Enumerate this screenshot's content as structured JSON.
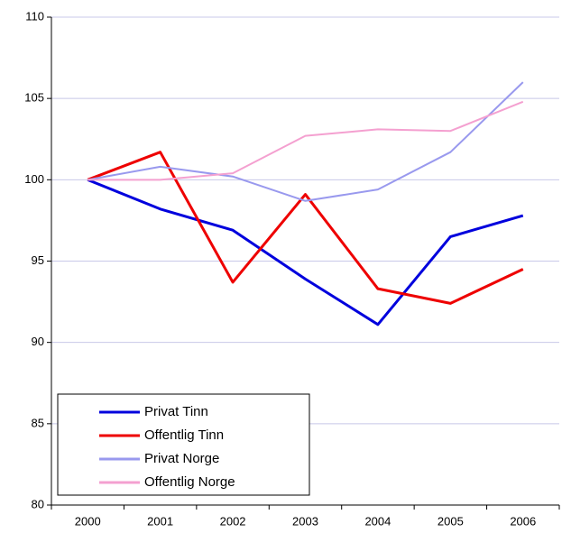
{
  "chart_data": {
    "type": "line",
    "categories": [
      "2000",
      "2001",
      "2002",
      "2003",
      "2004",
      "2005",
      "2006"
    ],
    "series": [
      {
        "name": "Privat Tinn",
        "color": "#0000dd",
        "values": [
          100,
          98.2,
          96.9,
          93.9,
          91.1,
          96.5,
          97.8
        ]
      },
      {
        "name": "Offentlig Tinn",
        "color": "#ee0000",
        "values": [
          100,
          101.7,
          93.7,
          99.1,
          93.3,
          92.4,
          94.5
        ]
      },
      {
        "name": "Privat Norge",
        "color": "#9999ee",
        "values": [
          100,
          100.8,
          100.2,
          98.7,
          99.4,
          101.7,
          106.0
        ]
      },
      {
        "name": "Offentlig Norge",
        "color": "#f4a0d0",
        "values": [
          100,
          100,
          100.4,
          102.7,
          103.1,
          103.0,
          104.8
        ]
      }
    ],
    "ylim": [
      80,
      110
    ],
    "yticks": [
      80,
      85,
      90,
      95,
      100,
      105,
      110
    ],
    "grid": true,
    "legend": "bottom-left"
  }
}
